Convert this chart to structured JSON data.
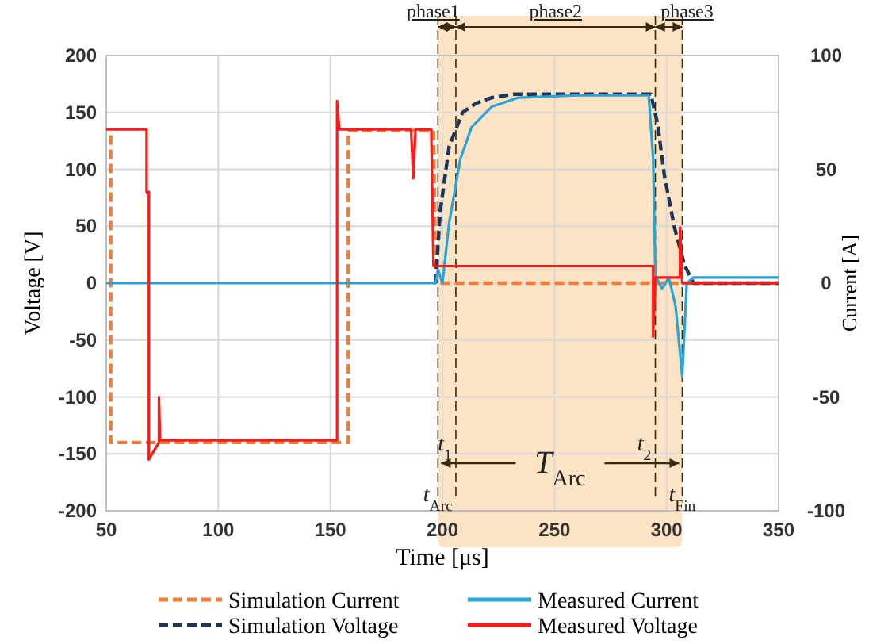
{
  "chart_data": {
    "type": "line",
    "xlabel": "Time [μs]",
    "ylabel": "Voltage [V]",
    "y2label": "Current [A]",
    "xlim": [
      50,
      350
    ],
    "xticks": [
      50,
      100,
      150,
      200,
      250,
      300,
      350
    ],
    "ylim": [
      -200,
      200
    ],
    "yticks": [
      -200,
      -150,
      -100,
      -50,
      0,
      50,
      100,
      150,
      200
    ],
    "y2lim": [
      -100,
      100
    ],
    "y2ticks": [
      -100,
      -50,
      0,
      50,
      100
    ],
    "grid": true,
    "legend": "bottom",
    "marker": "none",
    "series": [
      {
        "name": "Simulation Current",
        "color": "#f07c3a",
        "axis": "y2",
        "line_style": "dashed",
        "x": [
          52,
          52,
          158,
          158,
          196,
          197,
          350
        ],
        "values": [
          65,
          -70,
          -70,
          67,
          67,
          0,
          0
        ]
      },
      {
        "name": "Simulation Voltage",
        "color": "#1f3557",
        "axis": "y",
        "line_style": "dashed",
        "x": [
          197,
          199,
          203,
          209,
          215,
          222,
          232,
          250,
          293,
          296,
          299,
          303.5,
          308,
          312,
          350
        ],
        "values": [
          0,
          63,
          120,
          150,
          158,
          163,
          166,
          166,
          166,
          140,
          95,
          49,
          16,
          0,
          0
        ]
      },
      {
        "name": "Measured Current",
        "color": "#2aa3d6",
        "axis": "y2",
        "line_style": "solid",
        "x": [
          50,
          197,
          198,
          200,
          203,
          208,
          213,
          222,
          234,
          260,
          292,
          294,
          295,
          298,
          301,
          304,
          307,
          309,
          312,
          350
        ],
        "values": [
          0,
          0,
          6,
          0,
          26.5,
          54.5,
          68.5,
          77.5,
          81.5,
          82.5,
          82.5,
          55,
          3.5,
          -2.5,
          2.5,
          -10,
          -41,
          0,
          2.5,
          2.5
        ]
      },
      {
        "name": "Measured Voltage",
        "color": "#ff1a1a",
        "axis": "y",
        "line_style": "solid",
        "x": [
          50,
          68,
          68,
          69,
          69,
          73.5,
          73.5,
          74,
          153,
          153,
          154,
          186,
          187,
          188,
          195,
          196,
          198,
          294,
          294,
          295,
          306,
          306,
          307,
          310,
          350
        ],
        "values": [
          135,
          135,
          80,
          80,
          -155,
          -140,
          -100,
          -138,
          -138,
          160,
          135,
          135,
          92,
          135,
          135,
          15,
          15,
          15,
          -47,
          5,
          5,
          49,
          0,
          0,
          0
        ]
      }
    ],
    "bands": [
      {
        "axis": "x",
        "from": 198,
        "to": 307,
        "label": "T$_{Arc}$",
        "color": "#fbe3c4"
      }
    ],
    "annotations": [
      "phase1",
      "phase2",
      "phase3"
    ],
    "ref_lines": [
      {
        "axis": "x",
        "value": 198,
        "label": "t$_{Arc}$",
        "line_style": "dashed"
      },
      {
        "axis": "x",
        "value": 206,
        "label": "t$_{1}$",
        "line_style": "dashed"
      },
      {
        "axis": "x",
        "value": 295,
        "label": "t$_{2}$",
        "line_style": "dashed"
      },
      {
        "axis": "x",
        "value": 307,
        "label": "t$_{Fin}$",
        "line_style": "dashed"
      }
    ]
  }
}
